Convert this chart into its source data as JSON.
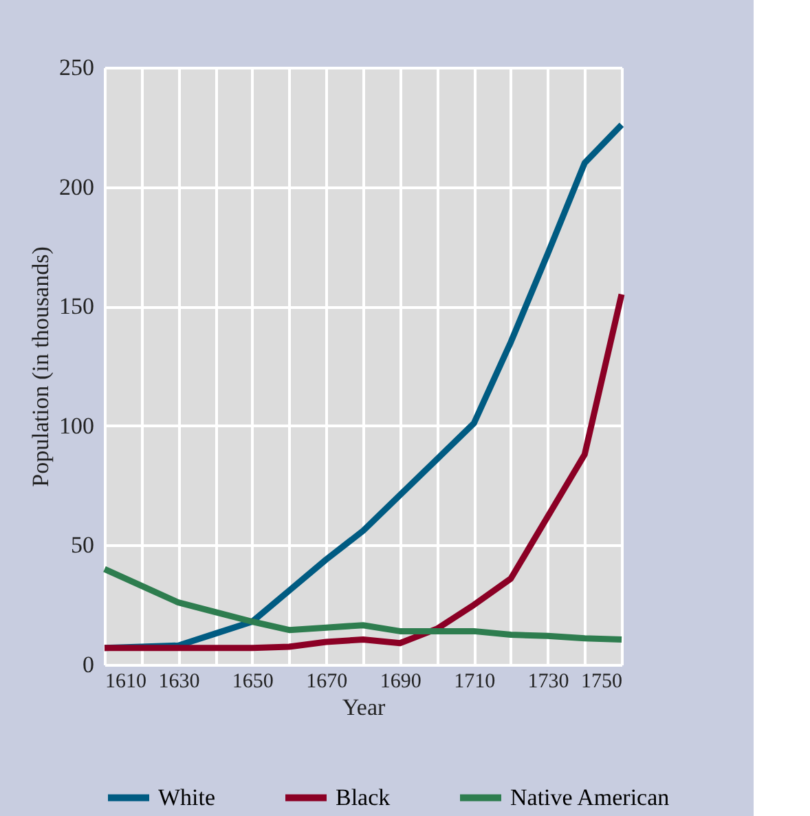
{
  "chart_data": {
    "type": "line",
    "xlabel": "Year",
    "ylabel": "Population (in thousands)",
    "x": [
      1610,
      1620,
      1630,
      1640,
      1650,
      1660,
      1670,
      1680,
      1690,
      1700,
      1710,
      1720,
      1730,
      1740,
      1750
    ],
    "series": [
      {
        "name": "White",
        "color": "#005b82",
        "values": [
          7,
          7.5,
          8,
          13,
          18,
          31,
          44,
          56,
          71,
          86,
          101,
          135,
          172,
          210,
          226
        ]
      },
      {
        "name": "Black",
        "color": "#8b0025",
        "values": [
          7,
          7,
          7,
          7,
          7,
          7.5,
          9.5,
          10.5,
          9,
          15,
          25,
          36,
          62,
          88,
          155
        ]
      },
      {
        "name": "Native American",
        "color": "#2e7d4f",
        "values": [
          40,
          33,
          26,
          22,
          18,
          14.5,
          15.5,
          16.5,
          14,
          14,
          14,
          12.5,
          12,
          11,
          10.5
        ]
      }
    ],
    "xlim": [
      1610,
      1750
    ],
    "xticks": [
      1610,
      {
        "value": 1620,
        "label": null
      },
      1630,
      {
        "value": 1640,
        "label": null
      },
      1650,
      {
        "value": 1660,
        "label": null
      },
      1670,
      {
        "value": 1680,
        "label": null
      },
      1690,
      {
        "value": 1700,
        "label": null
      },
      1710,
      {
        "value": 1720,
        "label": null
      },
      1730,
      {
        "value": 1740,
        "label": null
      },
      1750
    ],
    "ylim": [
      0,
      250
    ],
    "yticks": [
      0,
      50,
      100,
      150,
      200,
      250
    ],
    "grid": true,
    "legend": "bottom",
    "marker": "none",
    "line_style": "solid"
  }
}
